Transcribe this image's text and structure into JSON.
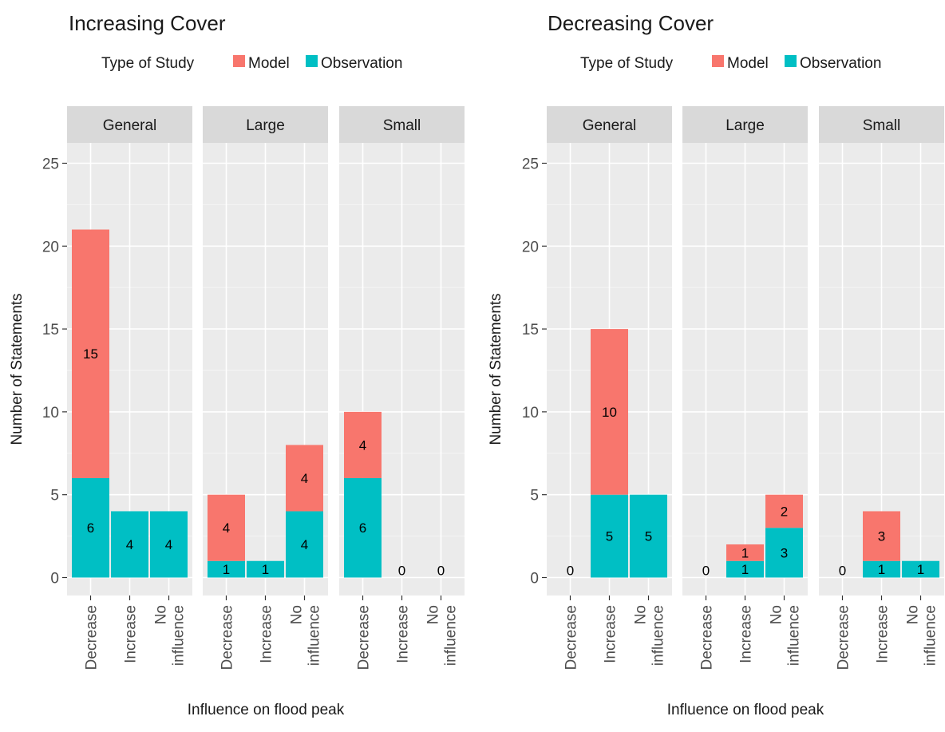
{
  "legend": {
    "title": "Type of Study",
    "items": [
      {
        "label": "Model",
        "color": "#F8766D"
      },
      {
        "label": "Observation",
        "color": "#00BFC4"
      }
    ]
  },
  "colors": {
    "panel_bg": "#EBEBEB",
    "strip_bg": "#D9D9D9",
    "grid": "#FFFFFF",
    "model": "#F8766D",
    "observation": "#00BFC4",
    "text": "#1A1A1A",
    "tick_text": "#4D4D4D"
  },
  "chart_data": [
    {
      "type": "bar",
      "stacked": true,
      "title": "Increasing Cover",
      "xlabel": "Influence on flood peak",
      "ylabel": "Number of Statements",
      "ylim": [
        0,
        26
      ],
      "yticks": [
        0,
        5,
        10,
        15,
        20,
        25
      ],
      "grid": true,
      "legend_position": "top",
      "categories": [
        "Decrease",
        "Increase",
        "No\ninfluence"
      ],
      "facets": [
        {
          "name": "General",
          "series": [
            {
              "name": "Observation",
              "values": [
                6,
                4,
                4
              ]
            },
            {
              "name": "Model",
              "values": [
                15,
                0,
                0
              ]
            }
          ],
          "labels": [
            [
              "6",
              "15"
            ],
            [
              "4"
            ],
            [
              "4"
            ]
          ]
        },
        {
          "name": "Large",
          "series": [
            {
              "name": "Observation",
              "values": [
                1,
                1,
                4
              ]
            },
            {
              "name": "Model",
              "values": [
                4,
                0,
                4
              ]
            }
          ],
          "labels": [
            [
              "1",
              "4"
            ],
            [
              "1"
            ],
            [
              "4",
              "4"
            ]
          ]
        },
        {
          "name": "Small",
          "series": [
            {
              "name": "Observation",
              "values": [
                6,
                0,
                0
              ]
            },
            {
              "name": "Model",
              "values": [
                4,
                0,
                0
              ]
            }
          ],
          "labels": [
            [
              "6",
              "4"
            ],
            [
              "0"
            ],
            [
              "0"
            ]
          ]
        }
      ]
    },
    {
      "type": "bar",
      "stacked": true,
      "title": "Decreasing Cover",
      "xlabel": "Influence on flood peak",
      "ylabel": "Number of Statements",
      "ylim": [
        0,
        26
      ],
      "yticks": [
        0,
        5,
        10,
        15,
        20,
        25
      ],
      "grid": true,
      "legend_position": "top",
      "categories": [
        "Decrease",
        "Increase",
        "No\ninfluence"
      ],
      "facets": [
        {
          "name": "General",
          "series": [
            {
              "name": "Observation",
              "values": [
                0,
                5,
                5
              ]
            },
            {
              "name": "Model",
              "values": [
                0,
                10,
                0
              ]
            }
          ],
          "labels": [
            [
              "0"
            ],
            [
              "5",
              "10"
            ],
            [
              "5"
            ]
          ]
        },
        {
          "name": "Large",
          "series": [
            {
              "name": "Observation",
              "values": [
                0,
                1,
                3
              ]
            },
            {
              "name": "Model",
              "values": [
                0,
                1,
                2
              ]
            }
          ],
          "labels": [
            [
              "0"
            ],
            [
              "1",
              "1"
            ],
            [
              "3",
              "2"
            ]
          ]
        },
        {
          "name": "Small",
          "series": [
            {
              "name": "Observation",
              "values": [
                0,
                1,
                1
              ]
            },
            {
              "name": "Model",
              "values": [
                0,
                3,
                0
              ]
            }
          ],
          "labels": [
            [
              "0"
            ],
            [
              "1",
              "3"
            ],
            [
              "1"
            ]
          ]
        }
      ]
    }
  ]
}
